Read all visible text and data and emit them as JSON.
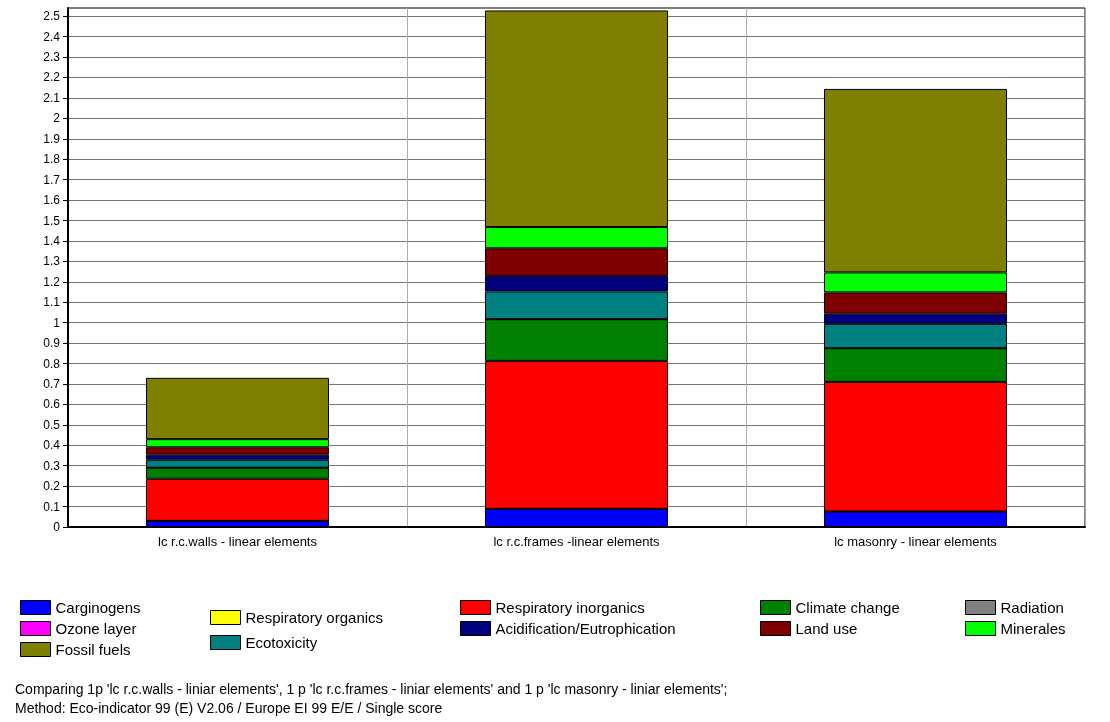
{
  "chart_data": {
    "type": "bar",
    "stacked": true,
    "categories": [
      "lc r.c.walls - linear elements",
      "lc r.c.frames -linear elements",
      "lc masonry - linear elements"
    ],
    "series": [
      {
        "name": "Carginogens",
        "color": "#0000ff",
        "values": [
          0.03,
          0.089,
          0.076
        ]
      },
      {
        "name": "Ozone layer",
        "color": "#ff00ff",
        "values": [
          0,
          0,
          0
        ]
      },
      {
        "name": "Respiratory organics",
        "color": "#ffff00",
        "values": [
          0,
          0,
          0
        ]
      },
      {
        "name": "Respiratory inorganics",
        "color": "#ff0000",
        "values": [
          0.206,
          0.724,
          0.634
        ]
      },
      {
        "name": "Climate change",
        "color": "#008000",
        "values": [
          0.054,
          0.204,
          0.165
        ]
      },
      {
        "name": "Radiation",
        "color": "#808080",
        "values": [
          0,
          0,
          0
        ]
      },
      {
        "name": "Ecotoxicity",
        "color": "#008080",
        "values": [
          0.039,
          0.136,
          0.119
        ]
      },
      {
        "name": "Acidification/Eutrophication",
        "color": "#000080",
        "values": [
          0.025,
          0.076,
          0.05
        ]
      },
      {
        "name": "Land use",
        "color": "#800000",
        "values": [
          0.036,
          0.135,
          0.104
        ]
      },
      {
        "name": "Minerales",
        "color": "#00ff00",
        "values": [
          0.04,
          0.104,
          0.098
        ]
      },
      {
        "name": "Fossil fuels",
        "color": "#808000",
        "values": [
          0.3,
          1.06,
          0.898
        ]
      }
    ],
    "ylim": [
      0,
      2.54
    ],
    "yticks": [
      0,
      0.1,
      0.2,
      0.3,
      0.4,
      0.5,
      0.6,
      0.7,
      0.8,
      0.9,
      1,
      1.1,
      1.2,
      1.3,
      1.4,
      1.5,
      1.6,
      1.7,
      1.8,
      1.9,
      2,
      2.1,
      2.2,
      2.3,
      2.4,
      2.5
    ],
    "grid": true,
    "legend": "bottom",
    "annotations": [
      "Comparing 1p 'lc r.c.walls - liniar elements', 1 p 'lc r.c.frames - liniar elements' and 1 p 'lc masonry - liniar elements';",
      "Method: Eco-indicator 99 (E) V2.06 / Europe EI 99 E/E / Single score"
    ]
  }
}
